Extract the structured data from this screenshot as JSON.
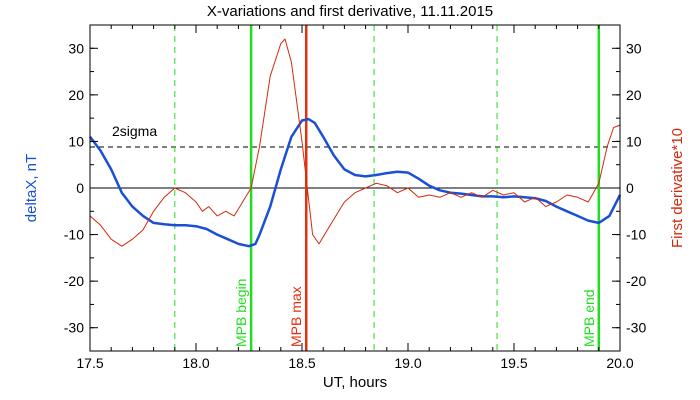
{
  "chart_data": {
    "type": "line",
    "title": "X-variations and first derivative, 11.11.2015",
    "xlabel": "UT, hours",
    "ylabel_left": "deltaX, nT",
    "ylabel_right": "First derivative*10",
    "xlim": [
      17.5,
      20.0
    ],
    "ylim": [
      -35,
      35
    ],
    "x_ticks": [
      "17.5",
      "18.0",
      "18.5",
      "19.0",
      "19.5",
      "20.0"
    ],
    "y_ticks": [
      "-30",
      "-20",
      "-10",
      "0",
      "10",
      "20",
      "30"
    ],
    "grid": false,
    "colors": {
      "deltaX": "#1a4fd6",
      "derivative": "#d42a0a",
      "mpb_lines": "#22dd22",
      "mpb_max": "#e03010",
      "sigma": "#000000"
    },
    "sigma_line": {
      "label": "2sigma",
      "y": 8.8
    },
    "zero_line_y": 0,
    "vertical_dashed_x": [
      17.9,
      18.84,
      19.42
    ],
    "vertical_markers": [
      {
        "x": 18.26,
        "label": "MPB begin",
        "color": "#22dd22"
      },
      {
        "x": 18.52,
        "label": "MPB max",
        "color": "#e03010"
      },
      {
        "x": 19.9,
        "label": "MPB end",
        "color": "#22dd22"
      }
    ],
    "series": [
      {
        "name": "deltaX",
        "color": "#1a4fd6",
        "x": [
          17.5,
          17.55,
          17.6,
          17.65,
          17.7,
          17.75,
          17.8,
          17.85,
          17.9,
          17.95,
          18.0,
          18.05,
          18.1,
          18.15,
          18.2,
          18.25,
          18.28,
          18.3,
          18.35,
          18.4,
          18.45,
          18.5,
          18.53,
          18.56,
          18.6,
          18.65,
          18.7,
          18.75,
          18.8,
          18.85,
          18.9,
          18.95,
          19.0,
          19.05,
          19.1,
          19.15,
          19.2,
          19.25,
          19.3,
          19.35,
          19.4,
          19.45,
          19.5,
          19.55,
          19.6,
          19.65,
          19.7,
          19.75,
          19.8,
          19.85,
          19.9,
          19.95,
          20.0
        ],
        "values": [
          11,
          8,
          4,
          -1,
          -4,
          -6,
          -7.5,
          -7.8,
          -8,
          -8,
          -8.2,
          -8.8,
          -10,
          -11,
          -12,
          -12.5,
          -12,
          -10,
          -4,
          4,
          11,
          14.5,
          14.8,
          14,
          11,
          7,
          4,
          2.8,
          2.5,
          2.8,
          3.2,
          3.5,
          3.3,
          2,
          0.5,
          -0.5,
          -1,
          -1.2,
          -1.5,
          -1.8,
          -1.8,
          -2,
          -1.8,
          -2,
          -2.2,
          -2.8,
          -4,
          -5,
          -6,
          -7,
          -7.5,
          -6,
          -1.5
        ]
      },
      {
        "name": "First derivative*10",
        "color": "#d42a0a",
        "x": [
          17.5,
          17.55,
          17.6,
          17.65,
          17.7,
          17.75,
          17.8,
          17.85,
          17.9,
          17.95,
          18.0,
          18.03,
          18.06,
          18.1,
          18.14,
          18.18,
          18.22,
          18.26,
          18.3,
          18.35,
          18.4,
          18.42,
          18.45,
          18.5,
          18.55,
          18.58,
          18.62,
          18.66,
          18.7,
          18.75,
          18.8,
          18.85,
          18.9,
          18.95,
          19.0,
          19.05,
          19.1,
          19.15,
          19.2,
          19.25,
          19.3,
          19.35,
          19.4,
          19.45,
          19.5,
          19.55,
          19.6,
          19.65,
          19.7,
          19.75,
          19.8,
          19.85,
          19.9,
          19.94,
          19.97,
          20.0
        ],
        "values": [
          -6,
          -8,
          -11,
          -12.5,
          -11,
          -9,
          -5,
          -2,
          0,
          -1,
          -3,
          -5,
          -4,
          -6,
          -5,
          -6,
          -3,
          0,
          9,
          24,
          31,
          32,
          27,
          10,
          -10,
          -12,
          -9,
          -6,
          -3,
          -1,
          0,
          1,
          0.5,
          -1,
          0,
          -2,
          -1.5,
          -2,
          -1,
          -2,
          -1,
          -2,
          -0.5,
          -1.5,
          -1,
          -3,
          -2,
          -4,
          -3,
          -1.5,
          -2,
          -3,
          1,
          9,
          13,
          13.5
        ]
      }
    ]
  }
}
